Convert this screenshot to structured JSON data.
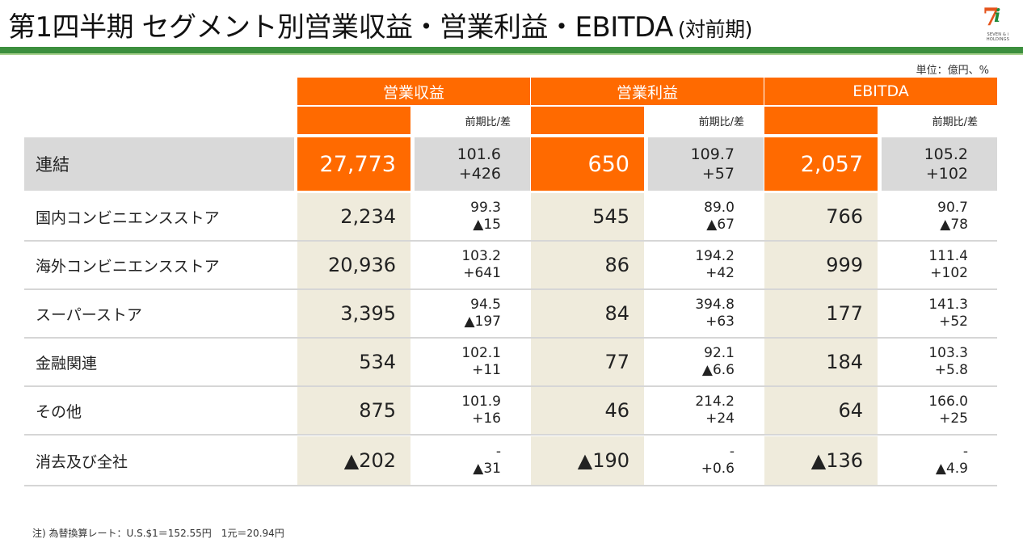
{
  "header": {
    "title": "第1四半期 セグメント別営業収益・営業利益・EBITDA",
    "subtitle": "(対前期)",
    "logo_text": "SEVEN & i HOLDINGS",
    "logo_mark": "7",
    "logo_mark2": "i"
  },
  "colors": {
    "accent": "#ff6a00",
    "header_bar": "#3c8f3e",
    "beige": "#efebdc",
    "gray": "#d9d9d9"
  },
  "table": {
    "unit": "単位：億円、%",
    "groups": [
      {
        "label": "営業収益",
        "sub": "前期比/差"
      },
      {
        "label": "営業利益",
        "sub": "前期比/差"
      },
      {
        "label": "EBITDA",
        "sub": "前期比/差"
      }
    ],
    "rows": [
      {
        "label": "連結",
        "cells": [
          {
            "value": "27,773",
            "ratio": "101.6",
            "diff": "+426"
          },
          {
            "value": "650",
            "ratio": "109.7",
            "diff": "+57"
          },
          {
            "value": "2,057",
            "ratio": "105.2",
            "diff": "+102"
          }
        ]
      },
      {
        "label": "国内コンビニエンスストア",
        "cells": [
          {
            "value": "2,234",
            "ratio": "99.3",
            "diff": "▲15"
          },
          {
            "value": "545",
            "ratio": "89.0",
            "diff": "▲67"
          },
          {
            "value": "766",
            "ratio": "90.7",
            "diff": "▲78"
          }
        ]
      },
      {
        "label": "海外コンビニエンスストア",
        "cells": [
          {
            "value": "20,936",
            "ratio": "103.2",
            "diff": "+641"
          },
          {
            "value": "86",
            "ratio": "194.2",
            "diff": "+42"
          },
          {
            "value": "999",
            "ratio": "111.4",
            "diff": "+102"
          }
        ]
      },
      {
        "label": "スーパーストア",
        "cells": [
          {
            "value": "3,395",
            "ratio": "94.5",
            "diff": "▲197"
          },
          {
            "value": "84",
            "ratio": "394.8",
            "diff": "+63"
          },
          {
            "value": "177",
            "ratio": "141.3",
            "diff": "+52"
          }
        ]
      },
      {
        "label": "金融関連",
        "cells": [
          {
            "value": "534",
            "ratio": "102.1",
            "diff": "+11"
          },
          {
            "value": "77",
            "ratio": "92.1",
            "diff": "▲6.6"
          },
          {
            "value": "184",
            "ratio": "103.3",
            "diff": "+5.8"
          }
        ]
      },
      {
        "label": "その他",
        "cells": [
          {
            "value": "875",
            "ratio": "101.9",
            "diff": "+16"
          },
          {
            "value": "46",
            "ratio": "214.2",
            "diff": "+24"
          },
          {
            "value": "64",
            "ratio": "166.0",
            "diff": "+25"
          }
        ]
      },
      {
        "label": "消去及び全社",
        "cells": [
          {
            "value": "▲202",
            "ratio": "-",
            "diff": "▲31"
          },
          {
            "value": "▲190",
            "ratio": "-",
            "diff": "+0.6"
          },
          {
            "value": "▲136",
            "ratio": "-",
            "diff": "▲4.9"
          }
        ]
      }
    ]
  },
  "footnote": "注) 為替換算レート：U.S.$1＝152.55円　1元＝20.94円"
}
